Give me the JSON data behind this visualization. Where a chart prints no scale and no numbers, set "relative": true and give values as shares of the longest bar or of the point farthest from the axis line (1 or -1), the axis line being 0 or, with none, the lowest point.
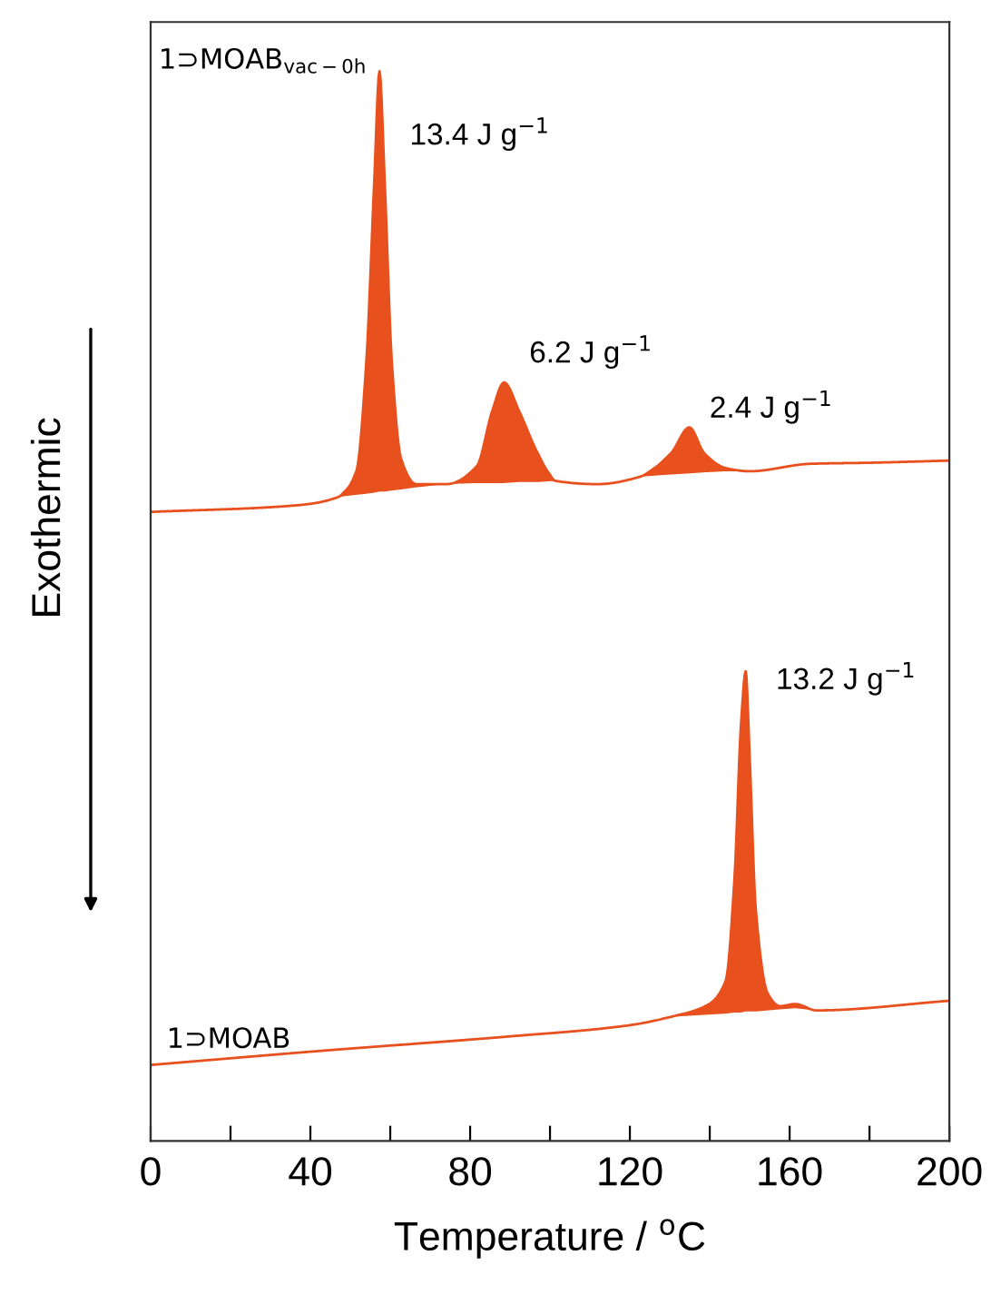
{
  "chart_data": {
    "type": "line",
    "relative": true,
    "xlabel": "Temperature / $^{o}$C",
    "ylabel": "Exothermic",
    "xlim": [
      0,
      200
    ],
    "xticks": [
      0,
      {
        "value": 20,
        "label": null
      },
      40,
      {
        "value": 60,
        "label": null
      },
      80,
      {
        "value": 100,
        "label": null
      },
      120,
      {
        "value": 140,
        "label": null
      },
      160,
      {
        "value": 180,
        "label": null
      },
      200
    ],
    "grid": false,
    "legend": false,
    "marker": "none",
    "line_style": "solid",
    "series": [
      {
        "name": "1⊃MOAB$_{vac−0h}$",
        "color": "#e8501e",
        "x": [
          0,
          36,
          47,
          51.5,
          54,
          56,
          57.3,
          58.6,
          60.4,
          62.7,
          66.5,
          74,
          81.7,
          85.5,
          88.5,
          92.3,
          96.9,
          101.4,
          112,
          122.6,
          130.3,
          134.9,
          138.6,
          144,
          150,
          165.2,
          180.4,
          200
        ],
        "values": [
          0.588,
          0.594,
          0.602,
          0.626,
          0.728,
          0.898,
          1.0,
          0.898,
          0.728,
          0.638,
          0.614,
          0.614,
          0.631,
          0.682,
          0.709,
          0.682,
          0.643,
          0.617,
          0.614,
          0.621,
          0.643,
          0.667,
          0.643,
          0.629,
          0.626,
          0.633,
          0.634,
          0.636
        ],
        "lower": [
          null,
          null,
          0.602,
          0.604,
          0.605,
          0.606,
          0.607,
          0.607,
          0.608,
          0.609,
          0.611,
          0.614,
          0.615,
          0.615,
          0.615,
          0.616,
          0.616,
          0.617,
          null,
          0.621,
          0.623,
          0.624,
          0.625,
          0.626,
          0.626,
          null,
          null,
          null
        ],
        "upper": [
          null,
          null,
          0.602,
          0.626,
          0.728,
          0.898,
          1.0,
          0.898,
          0.728,
          0.638,
          0.614,
          0.614,
          0.631,
          0.682,
          0.709,
          0.682,
          0.643,
          0.617,
          null,
          0.621,
          0.643,
          0.667,
          0.643,
          0.629,
          0.626,
          null,
          null,
          null
        ]
      },
      {
        "name": "1⊃MOAB",
        "color": "#e8501e",
        "x": [
          0,
          43.7,
          89.3,
          119.7,
          130.3,
          139.4,
          144,
          146.2,
          147.8,
          149,
          150,
          151.5,
          154.5,
          157.6,
          161.4,
          166.7,
          200
        ],
        "values": [
          0.071,
          0.0845,
          0.0975,
          0.108,
          0.116,
          0.127,
          0.15,
          0.246,
          0.388,
          0.439,
          0.359,
          0.218,
          0.138,
          0.126,
          0.128,
          0.122,
          0.131
        ],
        "lower": [
          null,
          null,
          null,
          null,
          0.116,
          0.118,
          0.119,
          0.12,
          0.12,
          0.121,
          0.121,
          0.121,
          0.122,
          0.123,
          0.124,
          0.122,
          null
        ],
        "upper": [
          null,
          null,
          null,
          null,
          0.116,
          0.127,
          0.15,
          0.246,
          0.388,
          0.439,
          0.359,
          0.218,
          0.138,
          0.126,
          0.128,
          0.122,
          null
        ]
      }
    ],
    "annotations": [
      {
        "text": "13.4 J g$^{−1}$",
        "x": 57.3,
        "y": 1.0
      },
      {
        "text": "6.2 J g$^{−1}$",
        "x": 88.5,
        "y": 0.709
      },
      {
        "text": "2.4 J g$^{−1}$",
        "x": 134.9,
        "y": 0.667
      },
      {
        "text": "13.2 J g$^{−1}$",
        "x": 149,
        "y": 0.439
      }
    ]
  }
}
